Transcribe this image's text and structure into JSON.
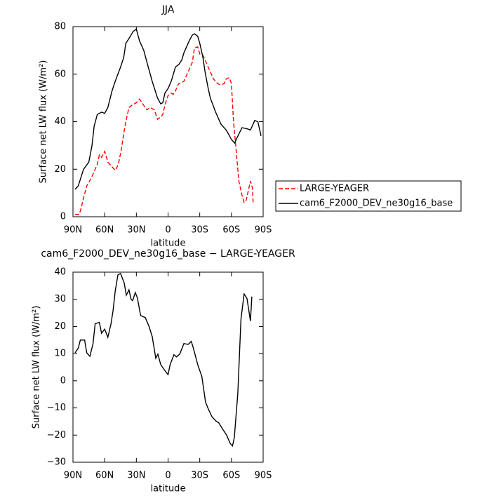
{
  "chart_data": [
    {
      "type": "line",
      "title": "JJA",
      "xlabel": "latitude",
      "ylabel": "Surface net LW flux (W/m²)",
      "xlim": [
        90,
        -90
      ],
      "ylim": [
        0,
        80
      ],
      "xticks": [
        {
          "value": 90,
          "label": "90N"
        },
        {
          "value": 60,
          "label": "60N"
        },
        {
          "value": 30,
          "label": "30N"
        },
        0,
        {
          "value": -30,
          "label": "30S"
        },
        {
          "value": -60,
          "label": "60S"
        },
        {
          "value": -90,
          "label": "90S"
        }
      ],
      "yticks": [
        0,
        20,
        40,
        60,
        80
      ],
      "legend": "outside right",
      "series": [
        {
          "name": "LARGE-YEAGER",
          "color": "#ff0000",
          "linestyle": "dashed",
          "x": [
            88,
            84,
            82,
            80,
            77,
            73,
            70,
            67,
            65,
            63,
            60,
            57,
            53,
            50,
            47,
            44,
            42,
            40,
            37,
            34,
            30,
            27,
            24,
            20,
            17,
            13,
            10,
            7,
            5,
            3,
            0,
            -3,
            -5,
            -7,
            -10,
            -13,
            -15,
            -18,
            -20,
            -23,
            -25,
            -28,
            -30,
            -33,
            -35,
            -40,
            -43,
            -47,
            -50,
            -53,
            -55,
            -58,
            -60,
            -62,
            -63,
            -65,
            -67,
            -70,
            -72,
            -74,
            -76,
            -78,
            -80,
            -80.5
          ],
          "values": [
            1,
            1,
            4,
            8,
            13,
            16,
            19,
            22,
            26,
            25,
            27.5,
            23,
            21,
            19.5,
            22,
            29,
            35,
            40,
            46,
            47,
            48,
            49.5,
            47.5,
            45,
            46,
            45,
            41,
            42,
            43,
            47,
            51,
            52,
            51.5,
            53,
            56,
            56.5,
            57,
            60,
            62,
            65,
            71,
            71.5,
            68.5,
            68,
            66,
            61,
            58,
            56,
            55.5,
            56,
            58,
            58.5,
            56,
            40,
            35,
            25,
            15,
            9,
            6,
            7,
            11,
            15,
            12,
            6
          ]
        },
        {
          "name": "cam6_F2000_DEV_ne30g16_base",
          "color": "#000000",
          "linestyle": "solid",
          "x": [
            88,
            85,
            80,
            75,
            72,
            70,
            67,
            63,
            60,
            57,
            53,
            50,
            45,
            42,
            40,
            37,
            33,
            30,
            27,
            23,
            20,
            15,
            10,
            7,
            5,
            3,
            0,
            -3,
            -5,
            -7,
            -10,
            -13,
            -15,
            -20,
            -23,
            -25,
            -28,
            -30,
            -33,
            -35,
            -38,
            -40,
            -45,
            -50,
            -55,
            -57,
            -60,
            -63,
            -65,
            -70,
            -75,
            -78,
            -82,
            -85,
            -88
          ],
          "values": [
            11.5,
            13,
            20,
            23,
            30,
            38,
            43,
            44,
            43.5,
            46,
            53,
            57,
            63,
            67,
            73,
            75,
            78,
            79,
            74,
            70,
            65,
            57,
            50,
            47.5,
            48,
            52,
            54,
            57,
            60,
            63,
            64,
            66,
            69,
            74,
            76.5,
            77,
            76,
            73,
            67,
            61,
            54,
            50,
            44,
            39,
            36.5,
            35,
            32.5,
            31,
            33,
            37.5,
            37,
            36.5,
            40.5,
            40,
            34
          ]
        }
      ]
    },
    {
      "type": "line",
      "title": "cam6_F2000_DEV_ne30g16_base − LARGE-YEAGER",
      "xlabel": "latitude",
      "ylabel": "Surface net LW flux (W/m²)",
      "xlim": [
        90,
        -90
      ],
      "ylim": [
        -30,
        40
      ],
      "xticks": [
        {
          "value": 90,
          "label": "90N"
        },
        {
          "value": 60,
          "label": "60N"
        },
        {
          "value": 30,
          "label": "30N"
        },
        0,
        {
          "value": -30,
          "label": "30S"
        },
        {
          "value": -60,
          "label": "60S"
        },
        {
          "value": -90,
          "label": "90S"
        }
      ],
      "yticks": [
        {
          "value": -30,
          "label": "−30"
        },
        {
          "value": -20,
          "label": "−20"
        },
        {
          "value": -10,
          "label": "−10"
        },
        0,
        10,
        20,
        30,
        40
      ],
      "series": [
        {
          "color": "#000000",
          "linestyle": "solid",
          "x": [
            88,
            85,
            83,
            79,
            77,
            74,
            71,
            69,
            65,
            63,
            60,
            57,
            54,
            52,
            50,
            47.5,
            45,
            41.5,
            39.5,
            37,
            35,
            33.5,
            31,
            29,
            26,
            21.6,
            18,
            15,
            11.6,
            9.6,
            7,
            3.7,
            0,
            -2,
            -5.6,
            -8,
            -11,
            -15,
            -19,
            -22,
            -24,
            -28,
            -32,
            -35.5,
            -38,
            -41.5,
            -45,
            -48,
            -52,
            -55.4,
            -58.7,
            -61,
            -62.7,
            -66,
            -69,
            -72,
            -74.7,
            -78,
            -79.3
          ],
          "values": [
            10.3,
            12,
            15,
            15,
            10.3,
            9,
            13.7,
            21,
            21.5,
            17.5,
            19,
            16,
            21,
            26,
            33,
            39,
            39.5,
            36,
            31.5,
            33.5,
            30,
            29.5,
            32.5,
            30.5,
            24,
            23.3,
            20,
            16.3,
            8.3,
            9.8,
            6,
            4.1,
            2.3,
            6,
            9.6,
            8.8,
            9.8,
            13.7,
            13.4,
            14.5,
            12,
            6,
            1.5,
            -7.8,
            -10.3,
            -13.2,
            -14.7,
            -15.5,
            -18,
            -20,
            -23,
            -24,
            -21,
            -4.7,
            22.7,
            32,
            30.3,
            22,
            31
          ]
        }
      ]
    }
  ]
}
